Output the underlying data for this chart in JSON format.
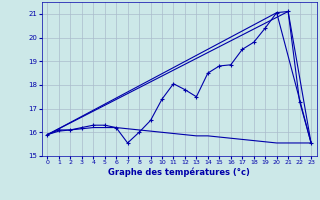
{
  "title": "Graphe des températures (°c)",
  "bg_color": "#cce8e8",
  "grid_color": "#aabccc",
  "line_color": "#0000aa",
  "xlim": [
    -0.5,
    23.5
  ],
  "ylim": [
    15,
    21.5
  ],
  "yticks": [
    15,
    16,
    17,
    18,
    19,
    20,
    21
  ],
  "xticks": [
    0,
    1,
    2,
    3,
    4,
    5,
    6,
    7,
    8,
    9,
    10,
    11,
    12,
    13,
    14,
    15,
    16,
    17,
    18,
    19,
    20,
    21,
    22,
    23
  ],
  "series1_x": [
    0,
    1,
    2,
    3,
    4,
    5,
    6,
    7,
    8,
    9,
    10,
    11,
    12,
    13,
    14,
    15,
    16,
    17,
    18,
    19,
    20,
    21,
    22,
    23
  ],
  "series1_y": [
    15.9,
    16.1,
    16.1,
    16.2,
    16.3,
    16.3,
    16.2,
    15.55,
    16.0,
    16.5,
    17.4,
    18.05,
    17.8,
    17.5,
    18.5,
    18.8,
    18.85,
    19.5,
    19.8,
    20.4,
    21.05,
    21.1,
    17.3,
    15.55
  ],
  "series2_straight": [
    [
      0,
      15.9,
      20,
      21.05
    ],
    [
      0,
      15.9,
      21,
      21.1
    ],
    [
      20,
      21.05,
      23,
      15.55
    ],
    [
      21,
      21.1,
      23,
      15.55
    ]
  ],
  "series3_x": [
    0,
    1,
    2,
    3,
    4,
    5,
    6,
    7,
    8,
    9,
    10,
    11,
    12,
    13,
    14,
    15,
    16,
    17,
    18,
    19,
    20,
    21,
    22,
    23
  ],
  "series3_y": [
    15.9,
    16.05,
    16.1,
    16.15,
    16.2,
    16.2,
    16.2,
    16.15,
    16.1,
    16.05,
    16.0,
    15.95,
    15.9,
    15.85,
    15.85,
    15.8,
    15.75,
    15.7,
    15.65,
    15.6,
    15.55,
    15.55,
    15.55,
    15.55
  ]
}
